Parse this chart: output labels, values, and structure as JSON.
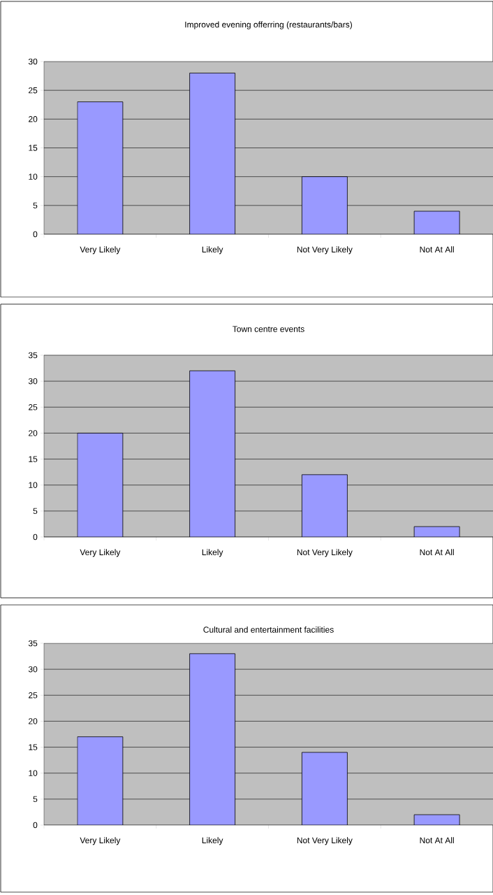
{
  "chart_data": [
    {
      "type": "bar",
      "title": "Improved evening offerring (restaurants/bars)",
      "categories": [
        "Very Likely",
        "Likely",
        "Not Very Likely",
        "Not At All"
      ],
      "values": [
        23,
        28,
        10,
        4
      ],
      "color": "#9999ff",
      "ylim": [
        0,
        30
      ],
      "yticks": [
        0,
        5,
        10,
        15,
        20,
        25,
        30
      ],
      "grid": "y"
    },
    {
      "type": "bar",
      "title": "Town centre events",
      "categories": [
        "Very Likely",
        "Likely",
        "Not Very Likely",
        "Not At All"
      ],
      "values": [
        20,
        32,
        12,
        2
      ],
      "color": "#9999ff",
      "ylim": [
        0,
        35
      ],
      "yticks": [
        0,
        5,
        10,
        15,
        20,
        25,
        30,
        35
      ],
      "grid": "y"
    },
    {
      "type": "bar",
      "title": "Cultural and entertainment facilities",
      "categories": [
        "Very Likely",
        "Likely",
        "Not Very Likely",
        "Not At All"
      ],
      "values": [
        17,
        33,
        14,
        2
      ],
      "color": "#9999ff",
      "ylim": [
        0,
        35
      ],
      "yticks": [
        0,
        5,
        10,
        15,
        20,
        25,
        30,
        35
      ],
      "grid": "y"
    }
  ]
}
